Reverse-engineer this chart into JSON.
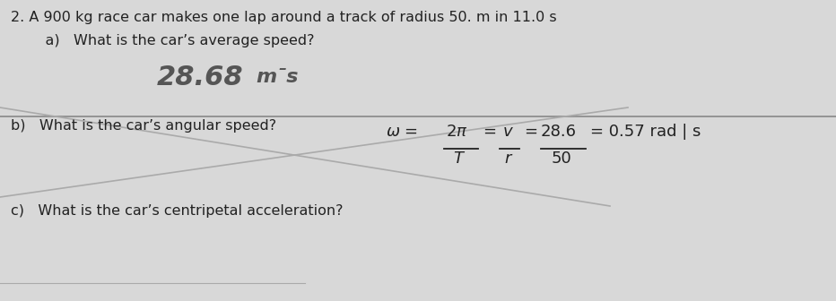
{
  "bg_color": "#d8d8d8",
  "title_line1": "2. A 900 kg race car makes one lap around a track of radius 50. m in 11.0 s",
  "title_line2": "    a)   What is the car’s average speed?",
  "answer_a": "28.68",
  "answer_a_units": "mˉs",
  "q_b_label": "b)   What is the car’s angular speed?",
  "q_c_label": "c)   What is the car’s centripetal acceleration?",
  "eq_omega": "ω =",
  "frac1_num": "2π",
  "frac1_den": "T",
  "frac2_num": "v",
  "frac2_den": "r",
  "frac3_num": "28.6",
  "frac3_den": "50",
  "eq_result": "= 0.57 rad | s",
  "text_color": "#222222",
  "handwritten_color": "#555555",
  "line_color": "#888888",
  "diag_color": "#aaaaaa"
}
